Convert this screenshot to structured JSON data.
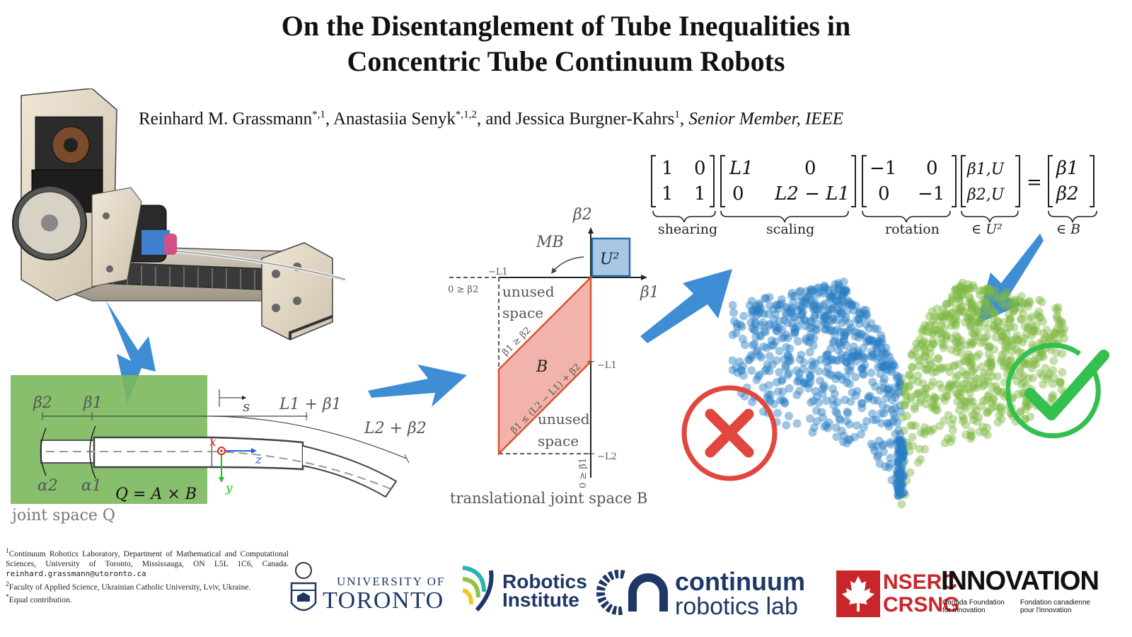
{
  "title": {
    "line1": "On the Disentanglement of Tube Inequalities in",
    "line2": "Concentric Tube Continuum Robots"
  },
  "authors": {
    "author1": "Reinhard M. Grassmann",
    "author1_sup": "*,1",
    "author2": "Anastasiia Senyk",
    "author2_sup": "*,1,2",
    "connector": "and",
    "author3": "Jessica Burgner-Kahrs",
    "author3_sup": "1",
    "membership": "Senior Member, IEEE"
  },
  "equation": {
    "matrix_shear": [
      [
        "1",
        "0"
      ],
      [
        "1",
        "1"
      ]
    ],
    "matrix_scale": [
      [
        "L1",
        "0"
      ],
      [
        "0",
        "L2 − L1"
      ]
    ],
    "matrix_rot": [
      [
        "−1",
        "0"
      ],
      [
        "0",
        "−1"
      ]
    ],
    "vec_u": [
      "β1,U",
      "β2,U"
    ],
    "equals": "=",
    "vec_b": [
      "β1",
      "β2"
    ],
    "brace_labels": [
      "shearing",
      "scaling",
      "rotation",
      "∈ U²",
      "∈ B"
    ]
  },
  "joint_space": {
    "labels": {
      "beta2": "β2",
      "beta1": "β1",
      "s": "s",
      "l1_beta1": "L1 + β1",
      "l2_beta2": "L2 + β2",
      "alpha2": "α2",
      "alpha1": "α1",
      "x": "x",
      "y": "y",
      "z": "z",
      "q_def": "Q = A × B"
    },
    "caption": "joint space Q"
  },
  "translational": {
    "labels": {
      "beta2_axis": "β2",
      "beta1_axis": "β1",
      "m_b": "MB",
      "u2": "U²",
      "b": "B",
      "neg_l1_top": "−L1",
      "neg_l1_right": "−L1",
      "neg_l2": "−L2",
      "ineq_left": "0 ≥ β2",
      "ineq_bottom": "0 ≥ β1",
      "ineq_diag1": "β1 ≥ β2",
      "ineq_diag2": "β1 ≤ (L2 − L1) + β2",
      "unused1_a": "unused",
      "unused1_b": "space",
      "unused2_a": "unused",
      "unused2_b": "space"
    },
    "caption": "translational joint space B"
  },
  "colors": {
    "arrow_blue": "#2f83d1",
    "point_blue": "#2a7ec3",
    "point_green": "#7fb842",
    "region_b": "#f2b3ad",
    "region_b_stroke": "#d9542e",
    "u2_fill": "#a9c8e6",
    "u2_stroke": "#2a6ea6",
    "cross_red": "#e1473e",
    "check_green": "#34c04f",
    "green_panel": "#7ab85c"
  },
  "footnotes": {
    "fn1": "Continuum Robotics Laboratory, Department of Mathematical and Computational Sciences, University of Toronto, Mississauga, ON L5L 1C6, Canada.",
    "fn1_email": "reinhard.grassmann@utoronto.ca",
    "fn2": "Faculty of Applied Science, Ukrainian Catholic University, Lviv, Ukraine.",
    "fn3": "Equal contribution."
  },
  "logos": {
    "uoft_line1": "UNIVERSITY OF",
    "uoft_line2": "TORONTO",
    "ri_line1": "Robotics",
    "ri_line2": "Institute",
    "crl_line1": "continuum",
    "crl_line2": "robotics lab",
    "nserc_line1": "NSERC",
    "nserc_line2": "CRSNG",
    "innovation": "INNOVATION",
    "cfi_en": "Canada Foundation for Innovation",
    "cfi_fr": "Fondation canadienne pour l'innovation"
  }
}
